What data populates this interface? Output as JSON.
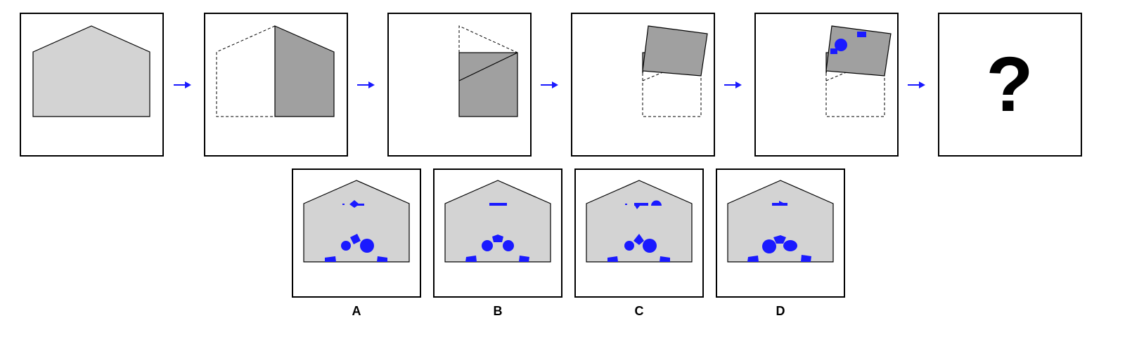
{
  "question_mark": "?",
  "options": [
    {
      "label": "A"
    },
    {
      "label": "B"
    },
    {
      "label": "C"
    },
    {
      "label": "D"
    }
  ],
  "colors": {
    "paper": "#d3d3d3",
    "folded_flap": "#a0a0a0",
    "hole": "#1a1aff",
    "arrow": "#1a1aff"
  },
  "icons": [
    "arrow-right-icon"
  ]
}
